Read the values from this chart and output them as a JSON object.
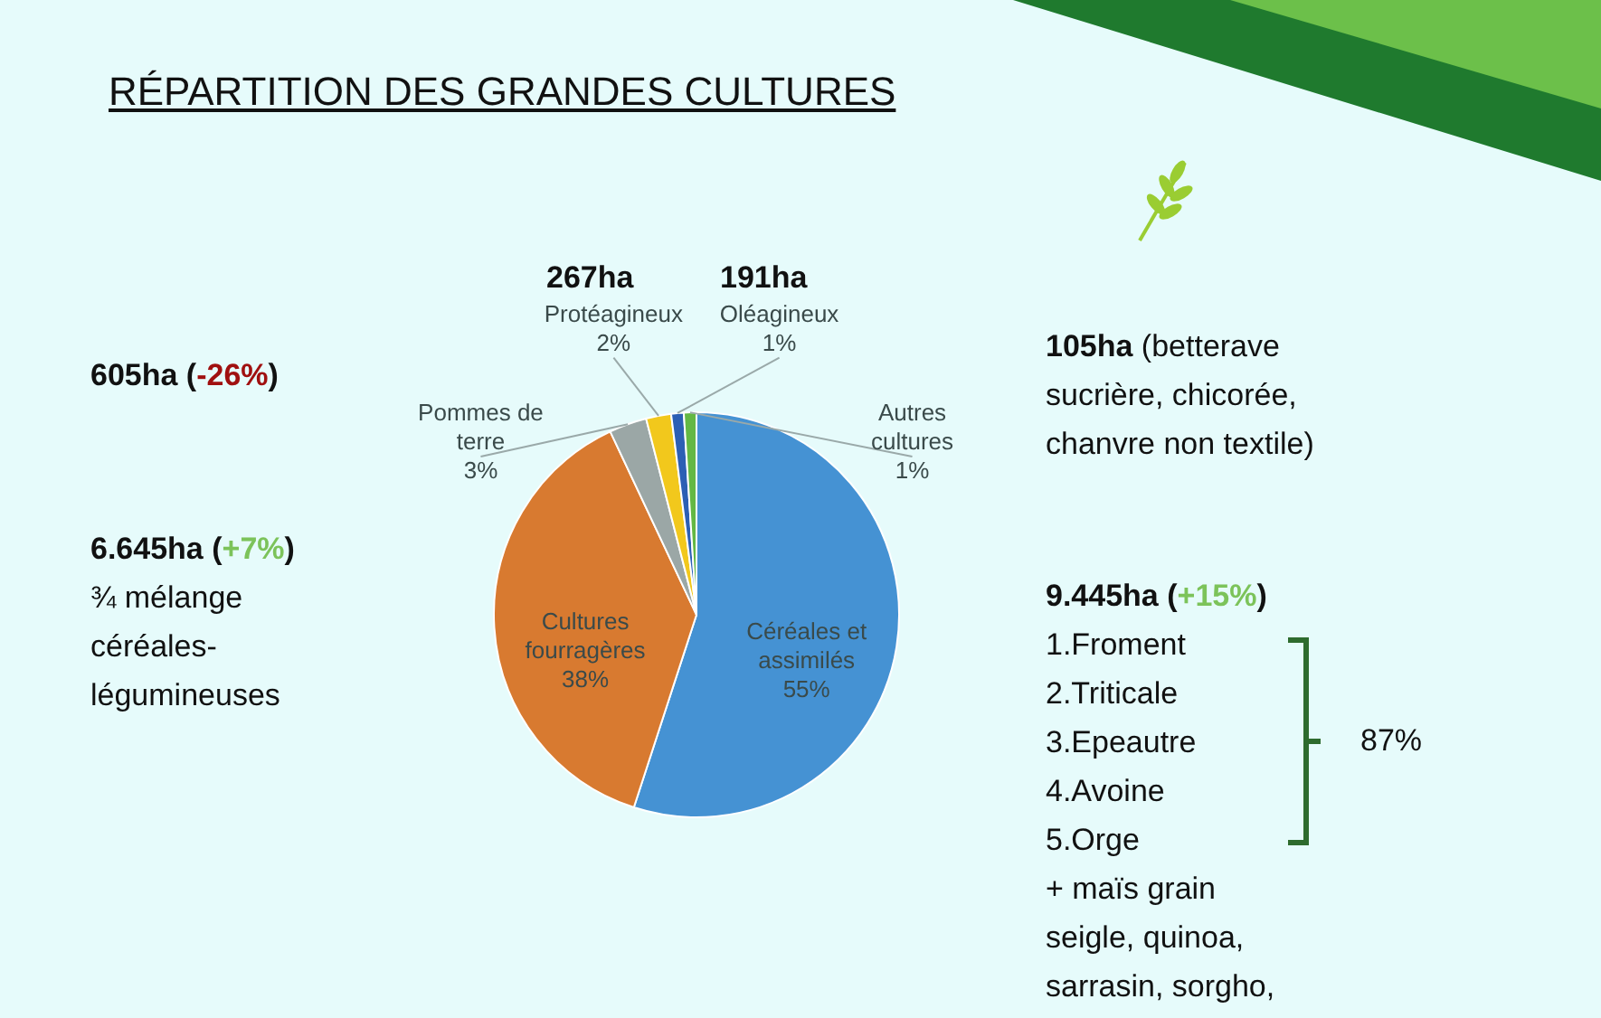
{
  "chart_data": {
    "type": "pie",
    "title": "RÉPARTITION DES GRANDES CULTURES",
    "categories": [
      "Céréales et assimilés",
      "Cultures fourragères",
      "Pommes de terre",
      "Protéagineux",
      "Oléagineux",
      "Autres cultures"
    ],
    "values": [
      55,
      38,
      3,
      2,
      1,
      1
    ],
    "value_labels": [
      "55%",
      "38%",
      "3%",
      "2%",
      "1%",
      "1%"
    ],
    "colors": [
      "#4592d3",
      "#d87a30",
      "#9ba7a6",
      "#f2c81c",
      "#2c5fb4",
      "#63b844"
    ],
    "annotations": [
      "267ha",
      "191ha",
      "605ha (-26%)",
      "105ha (betterave\nsucrière, chicorée,\nchanvre non textile)",
      "6.645ha (+7%)\n¾ mélange\ncéréales-\nlégumineuses",
      "9.445ha (+15%)\n1.Froment\n2.Triticale\n3.Epeautre\n4.Avoine\n5.Orge\n+ maïs grain\nseigle, quinoa,\nsarrasin, sorgho,",
      "87%"
    ]
  }
}
